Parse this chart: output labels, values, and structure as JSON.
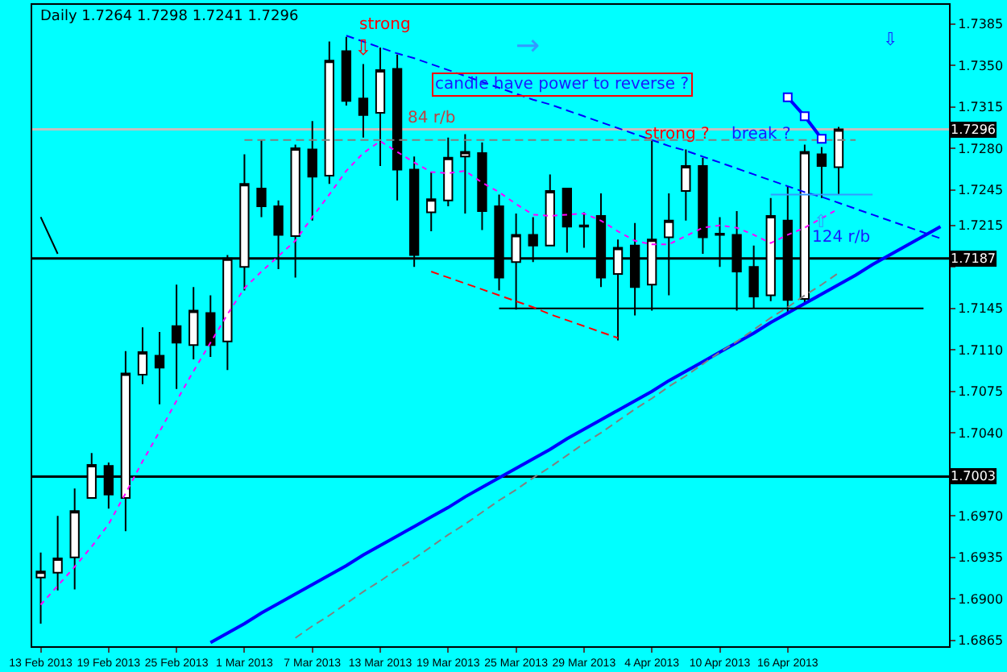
{
  "chart_data": {
    "type": "candlestick",
    "title": "Daily 1.7264 1.7298 1.7241 1.7296",
    "categories": [
      "13 Feb 2013",
      null,
      null,
      null,
      "19 Feb 2013",
      null,
      null,
      null,
      "25 Feb 2013",
      null,
      null,
      null,
      "1 Mar 2013",
      null,
      null,
      null,
      "7 Mar 2013",
      null,
      null,
      null,
      "13 Mar 2013",
      null,
      null,
      null,
      "19 Mar 2013",
      null,
      null,
      null,
      "25 Mar 2013",
      null,
      null,
      null,
      "29 Mar 2013",
      null,
      null,
      null,
      "4 Apr 2013",
      null,
      null,
      null,
      "10 Apr 2013",
      null,
      null,
      null,
      "16 Apr 2013",
      null,
      null,
      null,
      null,
      null,
      null,
      null,
      null,
      null
    ],
    "ohlc": [
      [
        1.6918,
        1.6939,
        1.6879,
        1.6923
      ],
      [
        1.6922,
        1.697,
        1.6907,
        1.6934
      ],
      [
        1.6935,
        1.6993,
        1.6908,
        1.6974
      ],
      [
        1.6985,
        1.7023,
        1.6985,
        1.7013
      ],
      [
        1.7012,
        1.7015,
        1.6976,
        1.6988
      ],
      [
        1.6985,
        1.7109,
        1.6957,
        1.709
      ],
      [
        1.7089,
        1.7129,
        1.7081,
        1.7108
      ],
      [
        1.7105,
        1.7125,
        1.7064,
        1.7095
      ],
      [
        1.713,
        1.7165,
        1.7077,
        1.7116
      ],
      [
        1.7114,
        1.7163,
        1.7102,
        1.7143
      ],
      [
        1.7141,
        1.7156,
        1.7104,
        1.7114
      ],
      [
        1.7117,
        1.719,
        1.7093,
        1.7187
      ],
      [
        1.718,
        1.7275,
        1.716,
        1.725
      ],
      [
        1.7246,
        1.7287,
        1.7222,
        1.7231
      ],
      [
        1.7231,
        1.7236,
        1.7178,
        1.7207
      ],
      [
        1.7206,
        1.7283,
        1.7171,
        1.728
      ],
      [
        1.7279,
        1.7303,
        1.7219,
        1.7256
      ],
      [
        1.7257,
        1.737,
        1.725,
        1.7354
      ],
      [
        1.7362,
        1.7374,
        1.7316,
        1.732
      ],
      [
        1.7322,
        1.7351,
        1.7289,
        1.7308
      ],
      [
        1.731,
        1.7365,
        1.7265,
        1.7346
      ],
      [
        1.7347,
        1.7359,
        1.7236,
        1.7262
      ],
      [
        1.7262,
        1.7273,
        1.718,
        1.719
      ],
      [
        1.7226,
        1.726,
        1.721,
        1.7237
      ],
      [
        1.7236,
        1.7289,
        1.7231,
        1.7272
      ],
      [
        1.7273,
        1.7292,
        1.7225,
        1.7277
      ],
      [
        1.7276,
        1.7285,
        1.7211,
        1.7227
      ],
      [
        1.7231,
        1.7241,
        1.716,
        1.7171
      ],
      [
        1.7184,
        1.7225,
        1.7144,
        1.7207
      ],
      [
        1.7207,
        1.7222,
        1.7184,
        1.7198
      ],
      [
        1.7198,
        1.7258,
        1.7198,
        1.7244
      ],
      [
        1.7246,
        1.7246,
        1.7192,
        1.7214
      ],
      [
        1.7215,
        1.7226,
        1.7196,
        1.7214
      ],
      [
        1.7223,
        1.7242,
        1.7163,
        1.7171
      ],
      [
        1.7174,
        1.7203,
        1.7118,
        1.7196
      ],
      [
        1.7198,
        1.7217,
        1.7139,
        1.7163
      ],
      [
        1.7165,
        1.7287,
        1.7143,
        1.7203
      ],
      [
        1.7205,
        1.7242,
        1.7156,
        1.7219
      ],
      [
        1.7244,
        1.7279,
        1.7219,
        1.7265
      ],
      [
        1.7265,
        1.7272,
        1.7191,
        1.7205
      ],
      [
        1.7208,
        1.7222,
        1.718,
        1.7207
      ],
      [
        1.7207,
        1.7227,
        1.7143,
        1.7176
      ],
      [
        1.718,
        1.7198,
        1.7145,
        1.7155
      ],
      [
        1.7156,
        1.7238,
        1.7151,
        1.7223
      ],
      [
        1.7219,
        1.7248,
        1.7141,
        1.7152
      ],
      [
        1.7153,
        1.7283,
        1.7149,
        1.7277
      ],
      [
        1.7275,
        1.7281,
        1.7238,
        1.7265
      ],
      [
        1.7264,
        1.7298,
        1.7241,
        1.7296
      ],
      null,
      null,
      null,
      null,
      null,
      null
    ],
    "series": [
      {
        "type": "line",
        "color": "#ff00ff",
        "line_style": "dotted",
        "values": [
          1.6895,
          1.6911,
          1.6927,
          1.6944,
          1.6963,
          1.6989,
          1.7016,
          1.7041,
          1.7067,
          1.7092,
          1.7116,
          1.714,
          1.7162,
          1.7176,
          1.7189,
          1.7202,
          1.7222,
          1.7241,
          1.7261,
          1.7276,
          1.7286,
          1.7277,
          1.7268,
          1.726,
          1.7259,
          1.7261,
          1.7251,
          1.7243,
          1.7233,
          1.7224,
          1.7223,
          1.7224,
          1.7225,
          1.7219,
          1.721,
          1.7202,
          1.7199,
          1.7199,
          1.7206,
          1.7213,
          1.7215,
          1.7213,
          1.7207,
          1.72,
          1.7207,
          1.7213,
          1.7221,
          1.7229,
          null,
          null,
          null,
          null,
          null,
          null
        ]
      },
      {
        "type": "line",
        "color": "#0000ff",
        "line_style": "solid",
        "values": [
          null,
          null,
          null,
          null,
          null,
          null,
          null,
          null,
          null,
          null,
          1.6863,
          1.6871,
          1.6879,
          1.6888,
          1.6896,
          1.6904,
          1.6912,
          1.692,
          1.6928,
          1.6937,
          1.6945,
          1.6953,
          1.6961,
          1.6969,
          1.6977,
          1.6986,
          1.6994,
          1.7002,
          1.701,
          1.7018,
          1.7026,
          1.7035,
          1.7043,
          1.7051,
          1.7059,
          1.7067,
          1.7075,
          1.7084,
          1.7092,
          1.71,
          1.7108,
          1.7116,
          1.7124,
          1.7133,
          1.7141,
          1.7149,
          1.7157,
          1.7165,
          1.7173,
          1.7182,
          1.719,
          1.7198,
          1.7206,
          1.7214
        ]
      },
      {
        "type": "line",
        "color": "#0000ff",
        "line_style": "dashed",
        "values": [
          null,
          null,
          null,
          null,
          null,
          null,
          null,
          null,
          null,
          null,
          null,
          null,
          null,
          null,
          null,
          null,
          null,
          null,
          1.7375,
          1.737,
          1.7365,
          1.736,
          1.7356,
          1.7351,
          1.7346,
          1.7341,
          1.7336,
          1.7331,
          1.7326,
          1.7321,
          1.7317,
          1.7312,
          1.7307,
          1.7302,
          1.7297,
          1.7292,
          1.7287,
          1.7282,
          1.7278,
          1.7273,
          1.7268,
          1.7263,
          1.7258,
          1.7253,
          1.7248,
          1.7243,
          1.7239,
          1.7234,
          1.7229,
          1.7224,
          1.7219,
          1.7214,
          1.7209,
          1.7204
        ]
      },
      {
        "type": "line",
        "color": "#808080",
        "line_style": "dashed",
        "values": [
          null,
          null,
          null,
          null,
          null,
          null,
          null,
          null,
          null,
          null,
          null,
          null,
          null,
          null,
          null,
          1.6867,
          1.6877,
          1.6886,
          1.6896,
          1.6906,
          1.6915,
          1.6925,
          1.6934,
          1.6944,
          1.6954,
          1.6963,
          1.6973,
          1.6983,
          1.6992,
          1.7002,
          1.7011,
          1.7021,
          1.7031,
          1.704,
          1.705,
          1.706,
          1.7069,
          1.7079,
          1.7088,
          1.7098,
          1.7108,
          1.7117,
          1.7127,
          1.7137,
          1.7146,
          1.7156,
          1.7165,
          1.7175,
          null,
          null,
          null,
          null,
          null,
          null
        ]
      },
      {
        "type": "line",
        "color": "#000000",
        "line_style": "solid",
        "values": [
          null,
          null,
          null,
          null,
          null,
          null,
          null,
          null,
          null,
          null,
          null,
          null,
          null,
          null,
          null,
          null,
          null,
          null,
          null,
          null,
          null,
          null,
          null,
          null,
          null,
          null,
          null,
          1.7145,
          1.7145,
          1.7145,
          1.7145,
          1.7145,
          1.7145,
          1.7145,
          1.7145,
          1.7145,
          1.7145,
          1.7145,
          1.7145,
          1.7145,
          1.7145,
          1.7145,
          1.7145,
          1.7145,
          1.7145,
          1.7145,
          1.7145,
          1.7145,
          1.7145,
          1.7145,
          1.7145,
          1.7145,
          1.7145,
          null
        ]
      },
      {
        "type": "line",
        "color": "#808080",
        "line_style": "dashed",
        "values": [
          null,
          null,
          null,
          null,
          null,
          null,
          null,
          null,
          null,
          null,
          null,
          null,
          1.7287,
          1.7287,
          1.7287,
          1.7287,
          1.7287,
          1.7287,
          1.7287,
          1.7287,
          1.7287,
          1.7287,
          1.7287,
          1.7287,
          1.7287,
          1.7287,
          1.7287,
          1.7287,
          1.7287,
          1.7287,
          1.7287,
          1.7287,
          1.7287,
          1.7287,
          1.7287,
          1.7287,
          1.7287,
          1.7287,
          1.7287,
          1.7287,
          1.7287,
          1.7287,
          1.7287,
          1.7287,
          1.7287,
          1.7287,
          1.7287,
          1.7287,
          1.7287,
          null,
          null,
          null,
          null,
          null
        ]
      },
      {
        "type": "line",
        "color": "#ff0000",
        "line_style": "dashed",
        "values": [
          null,
          null,
          null,
          null,
          null,
          null,
          null,
          null,
          null,
          null,
          null,
          null,
          null,
          null,
          null,
          null,
          null,
          null,
          null,
          null,
          null,
          null,
          null,
          1.7176,
          1.7171,
          1.7166,
          1.7161,
          1.7156,
          1.7151,
          1.7146,
          1.714,
          1.7135,
          1.713,
          1.7125,
          1.712,
          null,
          null,
          null,
          null,
          null,
          null,
          null,
          null,
          null,
          null,
          null,
          null,
          null,
          null,
          null,
          null,
          null,
          null,
          null
        ]
      },
      {
        "type": "line",
        "color": "#3399ff",
        "line_style": "solid",
        "values": [
          null,
          null,
          null,
          null,
          null,
          null,
          null,
          null,
          null,
          null,
          null,
          null,
          null,
          null,
          null,
          null,
          null,
          null,
          null,
          null,
          null,
          null,
          null,
          null,
          null,
          null,
          null,
          null,
          null,
          null,
          null,
          null,
          null,
          null,
          null,
          null,
          null,
          null,
          null,
          null,
          null,
          null,
          null,
          1.7241,
          1.7241,
          1.7241,
          1.7241,
          1.7241,
          1.7241,
          1.7241,
          null,
          null,
          null,
          null
        ]
      },
      {
        "type": "line",
        "color": "#0000ff",
        "line_style": "solid",
        "marker": "square",
        "values": [
          null,
          null,
          null,
          null,
          null,
          null,
          null,
          null,
          null,
          null,
          null,
          null,
          null,
          null,
          null,
          null,
          null,
          null,
          null,
          null,
          null,
          null,
          null,
          null,
          null,
          null,
          null,
          null,
          null,
          null,
          null,
          null,
          null,
          null,
          null,
          null,
          null,
          null,
          null,
          null,
          null,
          null,
          null,
          null,
          1.7323,
          1.7307,
          1.7288,
          null,
          null,
          null,
          null,
          null,
          null,
          null
        ]
      },
      {
        "type": "line",
        "color": "#000000",
        "line_style": "solid",
        "values": [
          1.7222,
          1.7191,
          null,
          null,
          null,
          null,
          null,
          null,
          null,
          null,
          null,
          null,
          null,
          null,
          null,
          null,
          null,
          null,
          null,
          null,
          null,
          null,
          null,
          null,
          null,
          null,
          null,
          null,
          null,
          null,
          null,
          null,
          null,
          null,
          null,
          null,
          null,
          null,
          null,
          null,
          null,
          null,
          null,
          null,
          null,
          null,
          null,
          null,
          null,
          null,
          null,
          null,
          null,
          null
        ]
      }
    ],
    "ref_lines": [
      {
        "axis": "y",
        "value": 1.7296,
        "label": "1.7296",
        "color": "#c0c0c0"
      },
      {
        "axis": "y",
        "value": 1.7187,
        "label": "1.7187",
        "color": "#000000"
      },
      {
        "axis": "y",
        "value": 1.7003,
        "label": "1.7003",
        "color": "#000000"
      }
    ],
    "annotations": [
      "strong",
      "⇩",
      "84 r/b",
      "candle have power to reverse ?",
      "strong ?",
      "break ?",
      "⇧",
      "124 r/b",
      "→",
      "⇩"
    ],
    "ylim": [
      1.686,
      1.7401
    ],
    "yticks": [
      {
        "value": 1.7385,
        "label": "1.7385"
      },
      {
        "value": 1.735,
        "label": "1.7350"
      },
      {
        "value": 1.7315,
        "label": "1.7315"
      },
      {
        "value": 1.728,
        "label": "1.7280"
      },
      {
        "value": 1.7245,
        "label": "1.7245"
      },
      {
        "value": 1.7215,
        "label": "1.7215"
      },
      {
        "value": 1.718,
        "label": null
      },
      {
        "value": 1.7145,
        "label": "1.7145"
      },
      {
        "value": 1.711,
        "label": "1.7110"
      },
      {
        "value": 1.7075,
        "label": "1.7075"
      },
      {
        "value": 1.704,
        "label": "1.7040"
      },
      {
        "value": 1.697,
        "label": "1.6970"
      },
      {
        "value": 1.6935,
        "label": "1.6935"
      },
      {
        "value": 1.69,
        "label": "1.6900"
      },
      {
        "value": 1.6865,
        "label": "1.6865"
      }
    ],
    "grid": false
  }
}
